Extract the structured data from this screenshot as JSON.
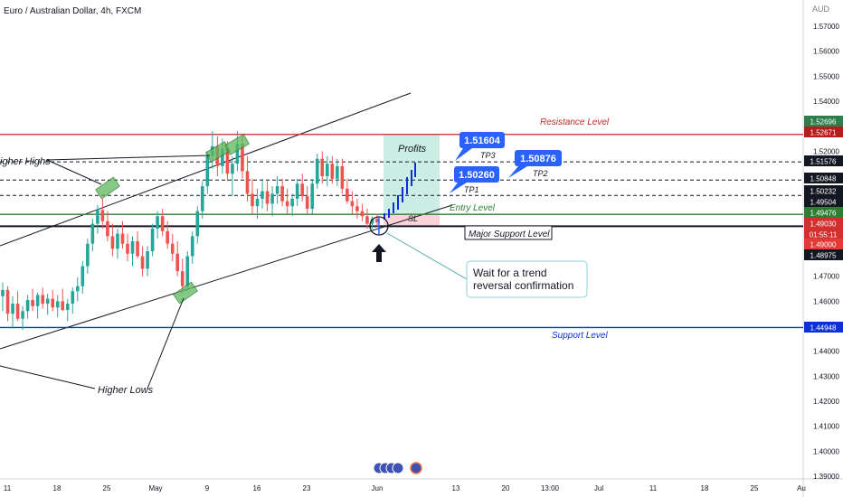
{
  "chart_title": "Euro / Australian Dollar, 4h, FXCM",
  "currency": "AUD",
  "chart_data": {
    "type": "candlestick",
    "title": "Euro / Australian Dollar, 4h, FXCM",
    "ylim": [
      1.388,
      1.578
    ],
    "y_ticks": [
      "1.57000",
      "1.56000",
      "1.55000",
      "1.54000",
      "1.53000",
      "1.52000",
      "1.51000",
      "1.50000",
      "1.49000",
      "1.48000",
      "1.47000",
      "1.46000",
      "1.45000",
      "1.44000",
      "1.43000",
      "1.42000",
      "1.41000",
      "1.40000",
      "1.39000"
    ],
    "x_ticks": [
      "11",
      "18",
      "25",
      "May",
      "9",
      "16",
      "23",
      "Jun",
      "13",
      "20",
      "13:00",
      "Jul",
      "11",
      "18",
      "25",
      "Au"
    ],
    "price_tags": [
      {
        "value": "1.52696",
        "color": "#2e7d4a"
      },
      {
        "value": "1.52671",
        "color": "#b71c1c"
      },
      {
        "value": "1.51576",
        "color": "#131722"
      },
      {
        "value": "1.50848",
        "color": "#131722"
      },
      {
        "value": "1.50232",
        "color": "#131722"
      },
      {
        "value": "1.49504",
        "color": "#131722"
      },
      {
        "value": "1.49476",
        "color": "#2e7d32"
      },
      {
        "value": "1.49030",
        "color": "#d32f2f"
      },
      {
        "value": "01:55:11",
        "color": "#d32f2f"
      },
      {
        "value": "1.49000",
        "color": "#e53935"
      },
      {
        "value": "1.48975",
        "color": "#131722"
      },
      {
        "value": "1.44948",
        "color": "#0d2fd6"
      }
    ],
    "levels": [
      {
        "label": "Resistance Level",
        "price": 1.52671,
        "color": "#c62828"
      },
      {
        "label": "Entry Level",
        "price": 1.49476,
        "color": "#2e7d32"
      },
      {
        "label": "Major Support Level",
        "price": 1.49,
        "color": "#131722"
      },
      {
        "label": "Support Level",
        "price": 1.44948,
        "color": "#0d2fd6"
      }
    ],
    "targets": [
      {
        "name": "TP1",
        "price": 1.50232,
        "bubble": "1.50260"
      },
      {
        "name": "TP2",
        "price": 1.50848,
        "bubble": "1.50876"
      },
      {
        "name": "TP3",
        "price": 1.51576,
        "bubble": "1.51604"
      }
    ],
    "candles": [
      [
        1.462,
        1.4675,
        1.456,
        1.4645
      ],
      [
        1.4645,
        1.466,
        1.452,
        1.455
      ],
      [
        1.455,
        1.462,
        1.449,
        1.459
      ],
      [
        1.459,
        1.464,
        1.452,
        1.453
      ],
      [
        1.453,
        1.458,
        1.4485,
        1.456
      ],
      [
        1.456,
        1.4625,
        1.453,
        1.4605
      ],
      [
        1.4605,
        1.465,
        1.456,
        1.458
      ],
      [
        1.458,
        1.4635,
        1.453,
        1.4625
      ],
      [
        1.4625,
        1.4655,
        1.457,
        1.459
      ],
      [
        1.459,
        1.463,
        1.4545,
        1.461
      ],
      [
        1.461,
        1.4645,
        1.456,
        1.4575
      ],
      [
        1.4575,
        1.4625,
        1.4535,
        1.46
      ],
      [
        1.46,
        1.465,
        1.456,
        1.4565
      ],
      [
        1.4565,
        1.461,
        1.452,
        1.459
      ],
      [
        1.459,
        1.4655,
        1.455,
        1.464
      ],
      [
        1.464,
        1.4695,
        1.46,
        1.466
      ],
      [
        1.466,
        1.476,
        1.463,
        1.474
      ],
      [
        1.474,
        1.485,
        1.471,
        1.483
      ],
      [
        1.483,
        1.493,
        1.48,
        1.491
      ],
      [
        1.491,
        1.4985,
        1.487,
        1.4965
      ],
      [
        1.4965,
        1.501,
        1.489,
        1.492
      ],
      [
        1.492,
        1.496,
        1.484,
        1.486
      ],
      [
        1.486,
        1.491,
        1.478,
        1.481
      ],
      [
        1.481,
        1.489,
        1.477,
        1.487
      ],
      [
        1.487,
        1.492,
        1.481,
        1.483
      ],
      [
        1.483,
        1.487,
        1.476,
        1.479
      ],
      [
        1.479,
        1.486,
        1.474,
        1.484
      ],
      [
        1.484,
        1.488,
        1.477,
        1.478
      ],
      [
        1.478,
        1.482,
        1.47,
        1.473
      ],
      [
        1.473,
        1.482,
        1.47,
        1.48
      ],
      [
        1.48,
        1.491,
        1.478,
        1.489
      ],
      [
        1.489,
        1.496,
        1.485,
        1.494
      ],
      [
        1.494,
        1.497,
        1.486,
        1.488
      ],
      [
        1.488,
        1.492,
        1.481,
        1.483
      ],
      [
        1.483,
        1.487,
        1.476,
        1.479
      ],
      [
        1.479,
        1.484,
        1.47,
        1.472
      ],
      [
        1.472,
        1.477,
        1.463,
        1.466
      ],
      [
        1.466,
        1.48,
        1.464,
        1.478
      ],
      [
        1.478,
        1.488,
        1.475,
        1.486
      ],
      [
        1.486,
        1.498,
        1.483,
        1.496
      ],
      [
        1.496,
        1.508,
        1.493,
        1.506
      ],
      [
        1.506,
        1.52,
        1.503,
        1.518
      ],
      [
        1.518,
        1.528,
        1.513,
        1.522
      ],
      [
        1.522,
        1.526,
        1.51,
        1.514
      ],
      [
        1.514,
        1.525,
        1.511,
        1.521
      ],
      [
        1.521,
        1.524,
        1.508,
        1.511
      ],
      [
        1.511,
        1.518,
        1.502,
        1.515
      ],
      [
        1.515,
        1.528,
        1.512,
        1.523
      ],
      [
        1.523,
        1.526,
        1.509,
        1.512
      ],
      [
        1.512,
        1.518,
        1.5,
        1.503
      ],
      [
        1.503,
        1.509,
        1.495,
        1.498
      ],
      [
        1.498,
        1.505,
        1.493,
        1.501
      ],
      [
        1.501,
        1.509,
        1.497,
        1.504
      ],
      [
        1.504,
        1.508,
        1.496,
        1.499
      ],
      [
        1.499,
        1.506,
        1.494,
        1.503
      ],
      [
        1.503,
        1.51,
        1.499,
        1.506
      ],
      [
        1.506,
        1.509,
        1.498,
        1.5
      ],
      [
        1.5,
        1.505,
        1.495,
        1.498
      ],
      [
        1.498,
        1.503,
        1.494,
        1.501
      ],
      [
        1.501,
        1.509,
        1.498,
        1.507
      ],
      [
        1.507,
        1.511,
        1.5,
        1.502
      ],
      [
        1.502,
        1.506,
        1.495,
        1.497
      ],
      [
        1.497,
        1.509,
        1.495,
        1.507
      ],
      [
        1.507,
        1.519,
        1.505,
        1.517
      ],
      [
        1.517,
        1.52,
        1.507,
        1.51
      ],
      [
        1.51,
        1.518,
        1.506,
        1.515
      ],
      [
        1.515,
        1.518,
        1.507,
        1.509
      ],
      [
        1.509,
        1.517,
        1.506,
        1.514
      ],
      [
        1.514,
        1.517,
        1.503,
        1.505
      ],
      [
        1.505,
        1.509,
        1.499,
        1.5
      ],
      [
        1.5,
        1.504,
        1.495,
        1.498
      ],
      [
        1.498,
        1.501,
        1.493,
        1.496
      ],
      [
        1.496,
        1.499,
        1.492,
        1.494
      ],
      [
        1.494,
        1.497,
        1.489,
        1.491
      ],
      [
        1.491,
        1.494,
        1.489,
        1.493
      ],
      [
        1.493,
        1.495,
        1.49,
        1.4915
      ]
    ]
  },
  "annotations": {
    "higher_highs": "igher Highs",
    "higher_lows": "Higher Lows",
    "profits": "Profits",
    "tp1": "TP1",
    "tp2": "TP2",
    "tp3": "TP3",
    "sl": "SL",
    "callout_line1": "Wait for a trend",
    "callout_line2": "reversal confirmation"
  }
}
